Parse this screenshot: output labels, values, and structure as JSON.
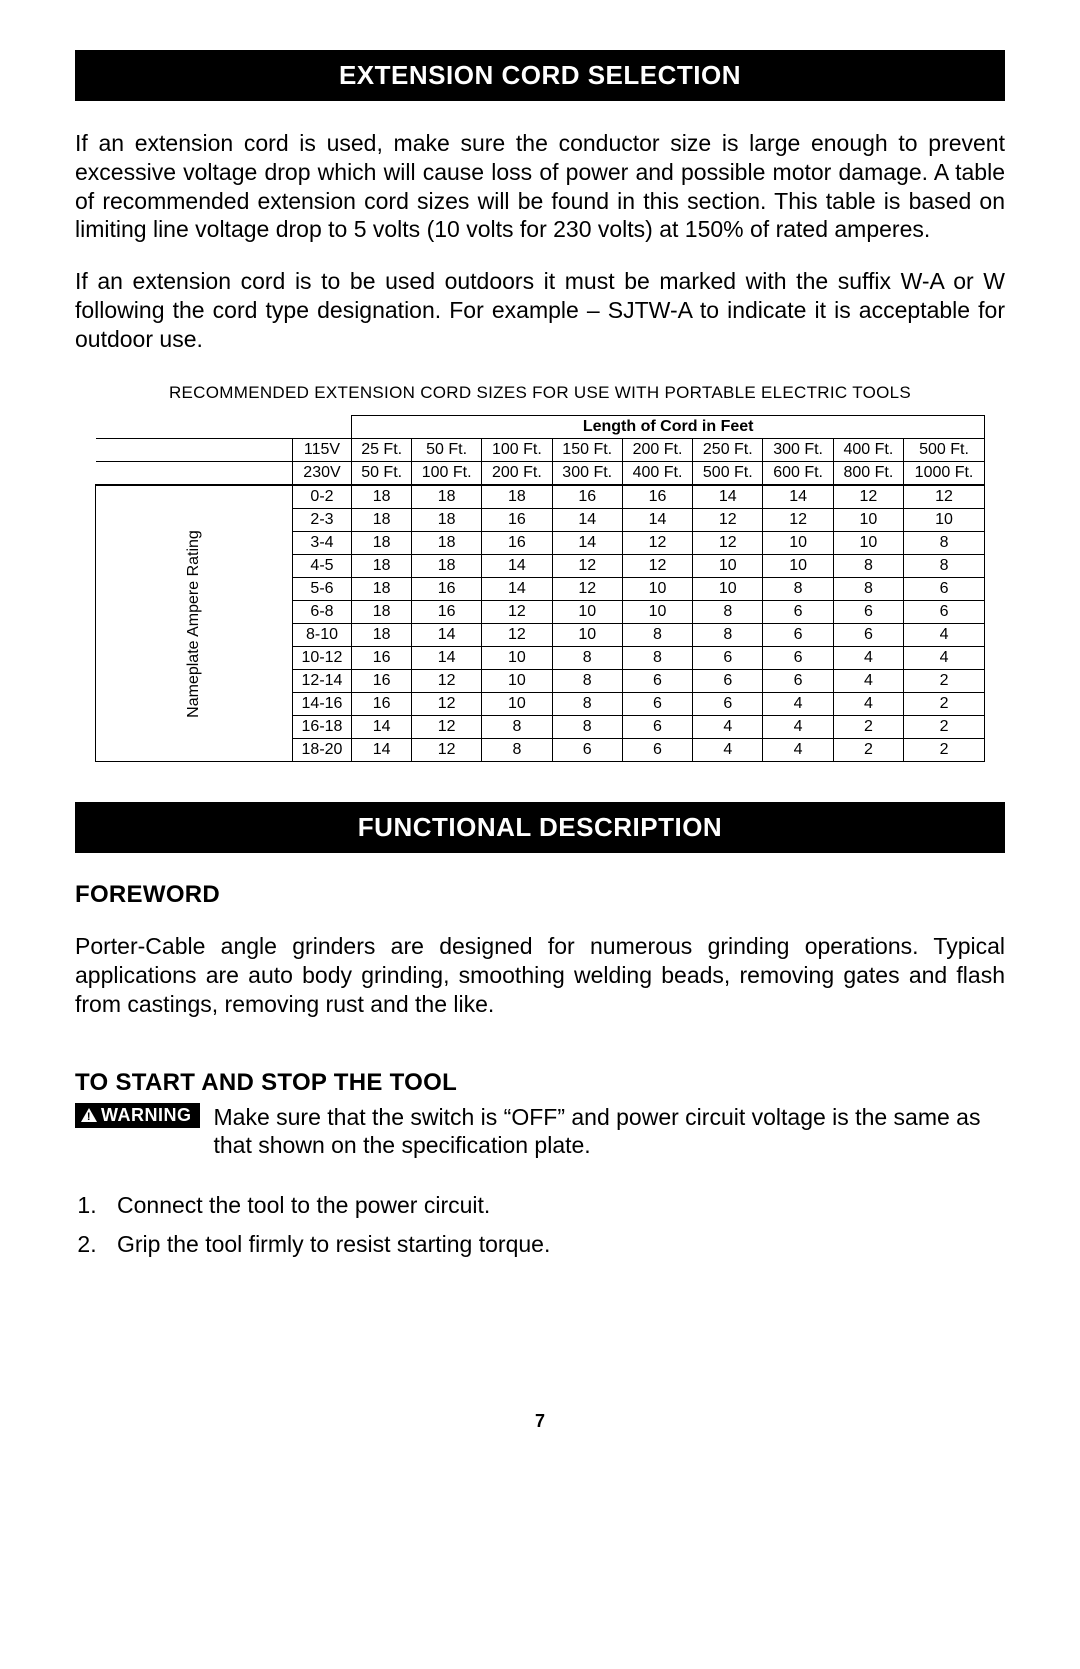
{
  "section1": {
    "heading": "EXTENSION CORD SELECTION",
    "para1": "If an extension cord is used, make sure the conductor size is large enough to prevent excessive voltage drop which will cause loss of power and possible motor damage. A table of recommended extension cord sizes will be found in this section. This table is based on limiting line voltage drop to 5 volts (10 volts for 230 volts) at 150% of rated amperes.",
    "para2": "If an extension cord is to be used outdoors it must be marked with the suffix W-A or W following the cord type designation. For example – SJTW-A to indicate it is acceptable for outdoor use."
  },
  "cord_table": {
    "title": "RECOMMENDED EXTENSION CORD SIZES FOR USE WITH PORTABLE ELECTRIC TOOLS",
    "length_header": "Length of Cord in Feet",
    "row_label": "Nameplate Ampere Rating",
    "volt115": "115V",
    "volt230": "230V",
    "lengths115": [
      "25 Ft.",
      "50 Ft.",
      "100 Ft.",
      "150 Ft.",
      "200 Ft.",
      "250 Ft.",
      "300 Ft.",
      "400 Ft.",
      "500 Ft."
    ],
    "lengths230": [
      "50 Ft.",
      "100 Ft.",
      "200 Ft.",
      "300 Ft.",
      "400 Ft.",
      "500 Ft.",
      "600 Ft.",
      "800 Ft.",
      "1000 Ft."
    ],
    "rows": [
      {
        "amp": "0-2",
        "v": [
          "18",
          "18",
          "18",
          "16",
          "16",
          "14",
          "14",
          "12",
          "12"
        ]
      },
      {
        "amp": "2-3",
        "v": [
          "18",
          "18",
          "16",
          "14",
          "14",
          "12",
          "12",
          "10",
          "10"
        ]
      },
      {
        "amp": "3-4",
        "v": [
          "18",
          "18",
          "16",
          "14",
          "12",
          "12",
          "10",
          "10",
          "8"
        ]
      },
      {
        "amp": "4-5",
        "v": [
          "18",
          "18",
          "14",
          "12",
          "12",
          "10",
          "10",
          "8",
          "8"
        ]
      },
      {
        "amp": "5-6",
        "v": [
          "18",
          "16",
          "14",
          "12",
          "10",
          "10",
          "8",
          "8",
          "6"
        ]
      },
      {
        "amp": "6-8",
        "v": [
          "18",
          "16",
          "12",
          "10",
          "10",
          "8",
          "6",
          "6",
          "6"
        ]
      },
      {
        "amp": "8-10",
        "v": [
          "18",
          "14",
          "12",
          "10",
          "8",
          "8",
          "6",
          "6",
          "4"
        ]
      },
      {
        "amp": "10-12",
        "v": [
          "16",
          "14",
          "10",
          "8",
          "8",
          "6",
          "6",
          "4",
          "4"
        ]
      },
      {
        "amp": "12-14",
        "v": [
          "16",
          "12",
          "10",
          "8",
          "6",
          "6",
          "6",
          "4",
          "2"
        ]
      },
      {
        "amp": "14-16",
        "v": [
          "16",
          "12",
          "10",
          "8",
          "6",
          "6",
          "4",
          "4",
          "2"
        ]
      },
      {
        "amp": "16-18",
        "v": [
          "14",
          "12",
          "8",
          "8",
          "6",
          "4",
          "4",
          "2",
          "2"
        ]
      },
      {
        "amp": "18-20",
        "v": [
          "14",
          "12",
          "8",
          "6",
          "6",
          "4",
          "4",
          "2",
          "2"
        ]
      }
    ]
  },
  "section2": {
    "heading": "FUNCTIONAL DESCRIPTION",
    "foreword_label": "FOREWORD",
    "foreword_text": "Porter-Cable angle grinders are designed for numerous grinding operations. Typical applications are auto body grinding, smoothing welding beads, removing gates and flash from castings, removing rust and the like.",
    "startstop_label": "TO START AND STOP THE TOOL",
    "warning_label": "WARNING",
    "warning_text": "Make sure that the switch is “OFF” and power circuit voltage is the same as that shown on the specification plate.",
    "steps": [
      "Connect the tool to the power circuit.",
      "Grip the tool firmly to resist starting torque."
    ]
  },
  "page_number": "7",
  "colors": {
    "header_bg": "#000000",
    "header_fg": "#ffffff",
    "text": "#000000",
    "page_bg": "#ffffff"
  }
}
